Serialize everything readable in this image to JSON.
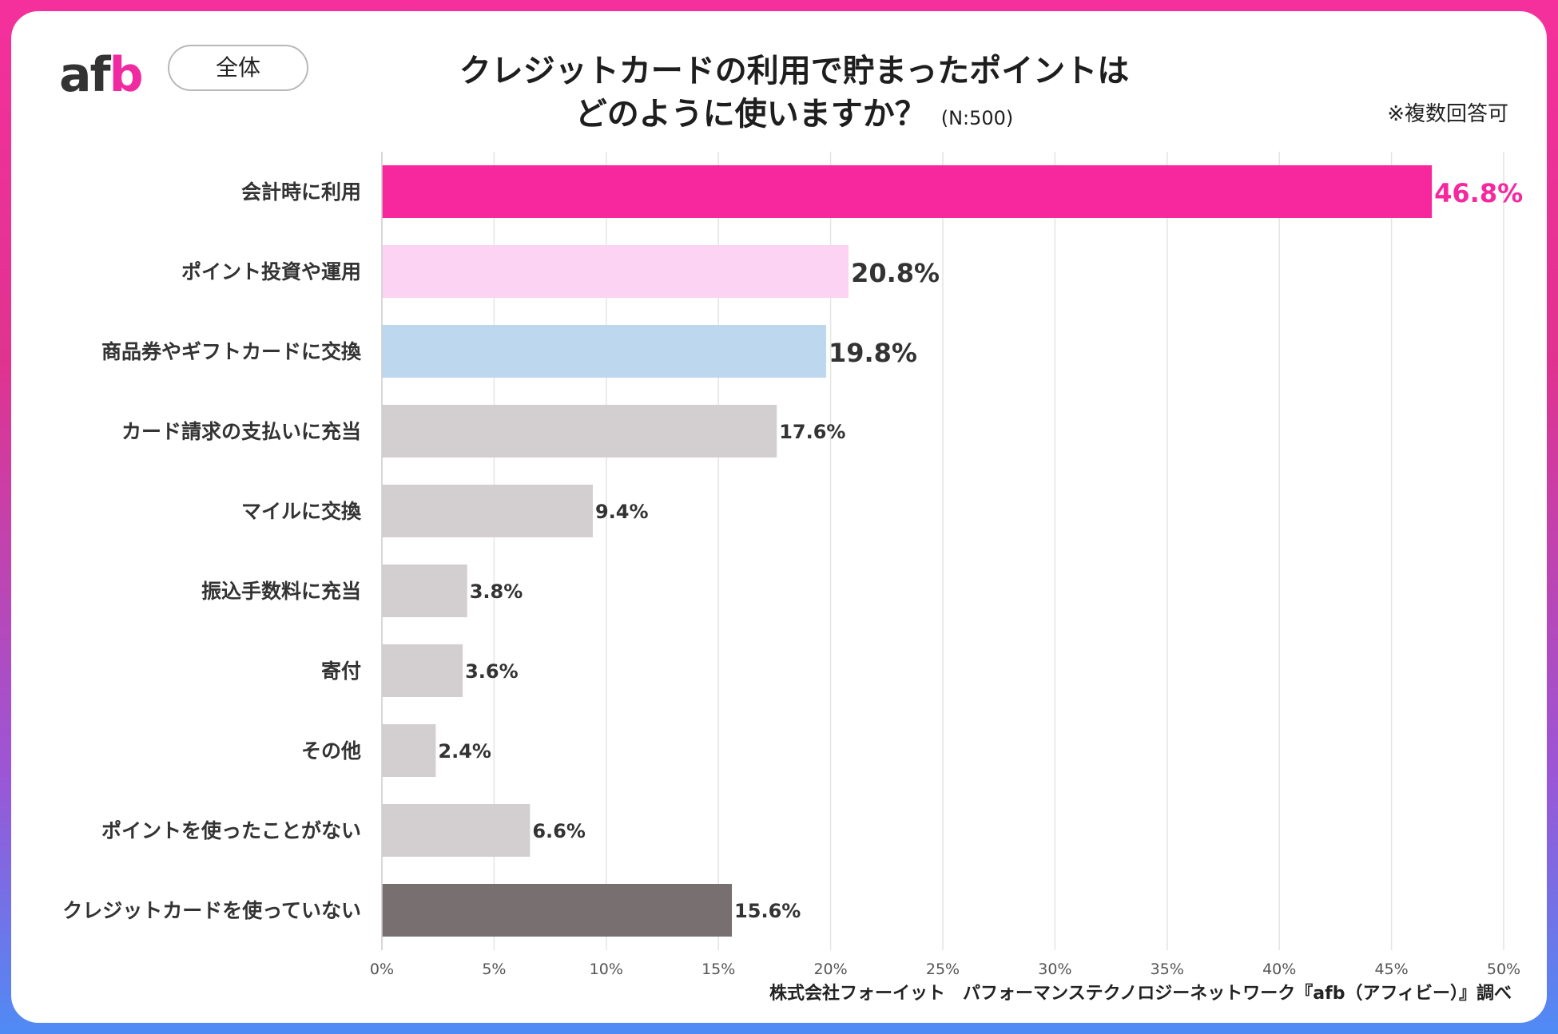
{
  "header": {
    "logo_a": "af",
    "logo_b": "b",
    "badge": "全体",
    "title_line1": "クレジットカードの利用で貯まったポイントは",
    "title_line2": "どのように使いますか？",
    "sample": "(N:500)",
    "note": "※複数回答可"
  },
  "footer": {
    "source": "株式会社フォーイット　パフォーマンステクノロジーネットワーク『afb（アフィビー）』調べ"
  },
  "colors": {
    "highlight": "#f7289e",
    "pink_light": "#fcd3f2",
    "blue_light": "#bdd7ee",
    "gray": "#d3cfd0",
    "dark_gray": "#787070",
    "label_text": "#333333"
  },
  "chart_data": {
    "type": "bar",
    "orientation": "horizontal",
    "title": "クレジットカードの利用で貯まったポイントはどのように使いますか？",
    "categories": [
      "会計時に利用",
      "ポイント投資や運用",
      "商品券やギフトカードに交換",
      "カード請求の支払いに充当",
      "マイルに交換",
      "振込手数料に充当",
      "寄付",
      "その他",
      "ポイントを使ったことがない",
      "クレジットカードを使っていない"
    ],
    "values": [
      46.8,
      20.8,
      19.8,
      17.6,
      9.4,
      3.8,
      3.6,
      2.4,
      6.6,
      15.6
    ],
    "value_labels": [
      "46.8%",
      "20.8%",
      "19.8%",
      "17.6%",
      "9.4%",
      "3.8%",
      "3.6%",
      "2.4%",
      "6.6%",
      "15.6%"
    ],
    "bar_colors": [
      "#f7289e",
      "#fcd3f2",
      "#bdd7ee",
      "#d3cfd0",
      "#d3cfd0",
      "#d3cfd0",
      "#d3cfd0",
      "#d3cfd0",
      "#d3cfd0",
      "#787070"
    ],
    "xlim": [
      0,
      50
    ],
    "xticks": [
      0,
      5,
      10,
      15,
      20,
      25,
      30,
      35,
      40,
      45,
      50
    ],
    "xtick_labels": [
      "0%",
      "5%",
      "10%",
      "15%",
      "20%",
      "25%",
      "30%",
      "35%",
      "40%",
      "45%",
      "50%"
    ],
    "grid": true
  }
}
